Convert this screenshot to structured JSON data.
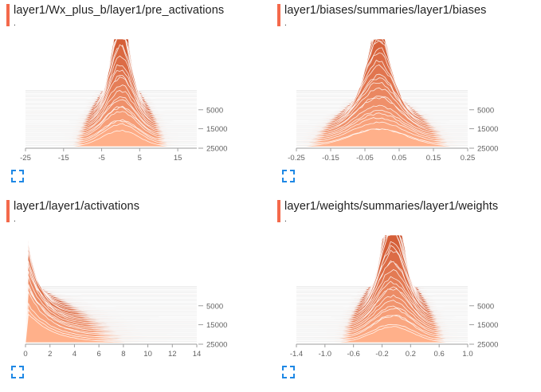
{
  "colors": {
    "accent": "#f4694b",
    "fill_dark": "#c0360f",
    "fill_light": "#ffb08a",
    "expand_icon": "#1e88e5",
    "axis": "#9e9e9e"
  },
  "panels": [
    {
      "title": "layer1/Wx_plus_b/layer1/pre_activations",
      "subtitle": ".",
      "chart_data": {
        "type": "histogram",
        "x_ticks": [
          "-25",
          "-15",
          "-5",
          "5",
          "15"
        ],
        "step_ticks": [
          "5000",
          "15000",
          "25000"
        ],
        "xlim": [
          -25,
          20
        ],
        "peak": 0,
        "width": 1.6,
        "spread_growth": 3.2
      }
    },
    {
      "title": "layer1/biases/summaries/layer1/biases",
      "subtitle": ".",
      "chart_data": {
        "type": "histogram",
        "x_ticks": [
          "-0.25",
          "-0.15",
          "-0.05",
          "0.05",
          "0.15",
          "0.25"
        ],
        "step_ticks": [
          "5000",
          "15000",
          "25000"
        ],
        "xlim": [
          -0.25,
          0.25
        ],
        "peak": -0.01,
        "width": 0.012,
        "spread_growth": 0.07
      }
    },
    {
      "title": "layer1/layer1/activations",
      "subtitle": ".",
      "chart_data": {
        "type": "histogram",
        "x_ticks": [
          "0",
          "2",
          "4",
          "6",
          "8",
          "10",
          "12",
          "14"
        ],
        "step_ticks": [
          "5000",
          "15000",
          "25000"
        ],
        "xlim": [
          0,
          14
        ],
        "peak": 0.1,
        "width": 0.25,
        "spread_growth": 1.8
      }
    },
    {
      "title": "layer1/weights/summaries/layer1/weights",
      "subtitle": ".",
      "chart_data": {
        "type": "histogram",
        "x_ticks": [
          "-1.4",
          "-1.0",
          "-0.6",
          "-0.2",
          "0.2",
          "0.6",
          "1.0"
        ],
        "step_ticks": [
          "5000",
          "15000",
          "25000"
        ],
        "xlim": [
          -1.4,
          1.0
        ],
        "peak": -0.05,
        "width": 0.11,
        "spread_growth": 0.18
      }
    }
  ]
}
